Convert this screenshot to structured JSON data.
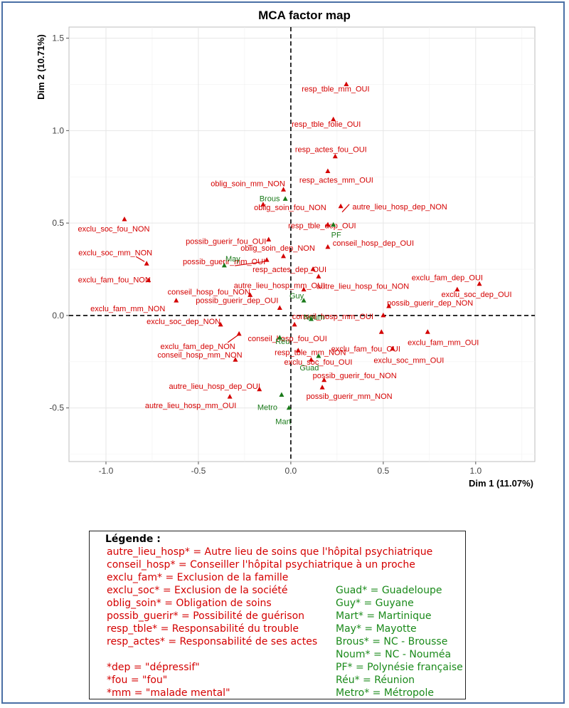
{
  "chart_data": {
    "type": "scatter",
    "title": "MCA factor map",
    "xlabel": "Dim 1 (11.07%)",
    "ylabel": "Dim 2 (10.71%)",
    "xlim": [
      -1.2,
      1.32
    ],
    "ylim": [
      -0.79,
      1.56
    ],
    "xticks": [
      -1.0,
      -0.5,
      0.0,
      0.5,
      1.0
    ],
    "xtick_labels": [
      "-1.0",
      "-0.5",
      "0.0",
      "0.5",
      "1.0"
    ],
    "yticks": [
      -0.5,
      0.0,
      0.5,
      1.0,
      1.5
    ],
    "ytick_labels": [
      "-0.5",
      "0.0",
      "0.5",
      "1.0",
      "1.5"
    ],
    "grid": true,
    "colors": {
      "variables": "#d40000",
      "regions": "#1a7a1a"
    },
    "series": [
      {
        "group": "variables",
        "points": [
          {
            "label": "resp_tble_mm_OUI",
            "x": 0.3,
            "y": 1.25
          },
          {
            "label": "resp_tble_folie_OUI",
            "x": 0.23,
            "y": 1.06
          },
          {
            "label": "resp_actes_fou_OUI",
            "x": 0.24,
            "y": 0.86
          },
          {
            "label": "resp_actes_mm_OUI",
            "x": 0.2,
            "y": 0.78
          },
          {
            "label": "oblig_soin_mm_NON",
            "x": -0.04,
            "y": 0.68
          },
          {
            "label": "oblig_soin_fou_NON",
            "x": -0.15,
            "y": 0.6
          },
          {
            "label": "autre_lieu_hosp_dep_NON",
            "x": 0.27,
            "y": 0.59
          },
          {
            "label": "resp_tble_dep_OUI",
            "x": 0.2,
            "y": 0.49
          },
          {
            "label": "exclu_soc_fou_NON",
            "x": -0.9,
            "y": 0.52
          },
          {
            "label": "possib_guerir_fou_OUI",
            "x": -0.12,
            "y": 0.41
          },
          {
            "label": "conseil_hosp_dep_OUI",
            "x": 0.2,
            "y": 0.37
          },
          {
            "label": "exclu_soc_mm_NON",
            "x": -0.78,
            "y": 0.28
          },
          {
            "label": "oblig_soin_dep_NON",
            "x": -0.04,
            "y": 0.32
          },
          {
            "label": "possib_guerir_mm_OUI",
            "x": -0.13,
            "y": 0.3
          },
          {
            "label": "autre_lieu_hosp_mm_OUI",
            "x": 0.15,
            "y": 0.21
          },
          {
            "label": "exclu_fam_fou_NON",
            "x": -0.77,
            "y": 0.19
          },
          {
            "label": "resp_actes_dep_OUI",
            "x": 0.12,
            "y": 0.25
          },
          {
            "label": "exclu_fam_dep_OUI",
            "x": 0.9,
            "y": 0.14
          },
          {
            "label": "exclu_soc_dep_OUI",
            "x": 1.02,
            "y": 0.17
          },
          {
            "label": "conseil_hosp_fou_NON",
            "x": -0.22,
            "y": 0.11
          },
          {
            "label": "autre_lieu_hosp_fou_NON",
            "x": 0.07,
            "y": 0.14
          },
          {
            "label": "exclu_fam_mm_NON",
            "x": -0.62,
            "y": 0.08
          },
          {
            "label": "possib_guerir_dep_NON",
            "x": 0.53,
            "y": 0.05
          },
          {
            "label": "possib_guerir_dep_OUI",
            "x": -0.06,
            "y": 0.04
          },
          {
            "label": "conseil_hosp_mm_OUI",
            "x": 0.5,
            "y": 0.0
          },
          {
            "label": "exclu_soc_dep_NON",
            "x": -0.38,
            "y": -0.05
          },
          {
            "label": "exclu_fam_mm_OUI",
            "x": 0.74,
            "y": -0.09
          },
          {
            "label": "conseil_hosp_fou_OUI",
            "x": 0.02,
            "y": -0.05
          },
          {
            "label": "exclu_fam_dep_NON",
            "x": -0.28,
            "y": -0.1
          },
          {
            "label": "exclu_fam_fou_OUI",
            "x": 0.49,
            "y": -0.09
          },
          {
            "label": "resp_tble_mm_NON",
            "x": 0.04,
            "y": -0.19
          },
          {
            "label": "conseil_hosp_mm_NON",
            "x": -0.3,
            "y": -0.24
          },
          {
            "label": "exclu_soc_mm_OUI",
            "x": 0.55,
            "y": -0.18
          },
          {
            "label": "exclu_soc_fou_OUI",
            "x": 0.11,
            "y": -0.24
          },
          {
            "label": "possib_guerir_fou_NON",
            "x": 0.18,
            "y": -0.35
          },
          {
            "label": "autre_lieu_hosp_dep_OUI",
            "x": -0.17,
            "y": -0.4
          },
          {
            "label": "possib_guerir_mm_NON",
            "x": 0.17,
            "y": -0.39
          },
          {
            "label": "autre_lieu_hosp_mm_OUI",
            "x": -0.33,
            "y": -0.44
          }
        ]
      },
      {
        "group": "regions",
        "points": [
          {
            "label": "Brous",
            "x": -0.03,
            "y": 0.63
          },
          {
            "label": "PF",
            "x": 0.23,
            "y": 0.49
          },
          {
            "label": "May",
            "x": -0.36,
            "y": 0.27
          },
          {
            "label": "Guy",
            "x": 0.07,
            "y": 0.08
          },
          {
            "label": "Noum",
            "x": 0.11,
            "y": -0.02
          },
          {
            "label": "Réu",
            "x": -0.06,
            "y": -0.12
          },
          {
            "label": "Guad",
            "x": 0.15,
            "y": -0.22
          },
          {
            "label": "Metro",
            "x": -0.05,
            "y": -0.43
          },
          {
            "label": "Mart",
            "x": -0.01,
            "y": -0.5
          }
        ]
      }
    ]
  },
  "legend": {
    "title": "Légende :",
    "red_lines": [
      "autre_lieu_hosp* = Autre lieu de soins que l'hôpital psychiatrique",
      "conseil_hosp* = Conseiller l'hôpital psychiatrique à un proche",
      "exclu_fam* = Exclusion de la famille",
      "exclu_soc* = Exclusion de la société",
      "oblig_soin* = Obligation de soins",
      "possib_guerir* = Possibilité de guérison",
      "resp_tble* = Responsabilité du trouble",
      "resp_actes* = Responsabilité de ses actes"
    ],
    "red_lines_2": [
      "*dep = \"dépressif\"",
      "*fou = \"fou\"",
      "*mm = \"malade mental\""
    ],
    "green_lines": [
      "Guad* = Guadeloupe",
      "Guy* = Guyane",
      "Mart* = Martinique",
      "May* = Mayotte",
      "Brous* = NC - Brousse",
      "Noum* = NC - Nouméa",
      "PF* = Polynésie française",
      "Réu* = Réunion",
      "Metro* = Métropole"
    ]
  }
}
